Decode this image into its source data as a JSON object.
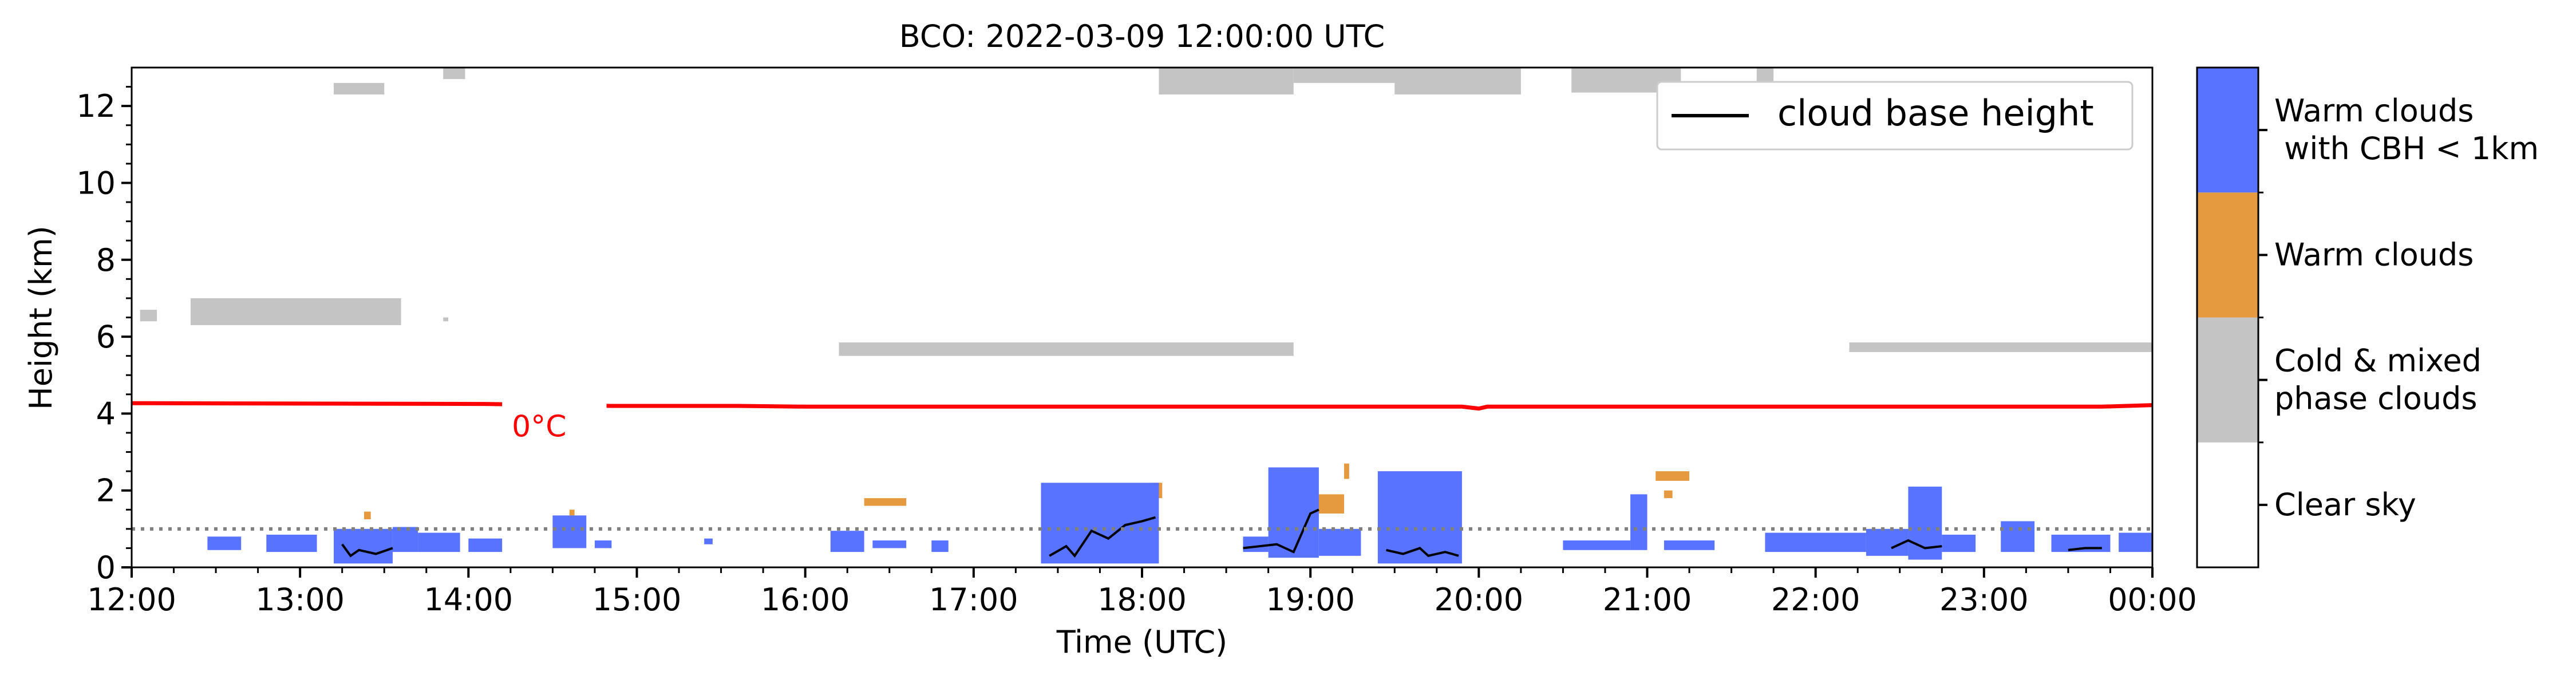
{
  "chart_data": {
    "type": "heatmap",
    "title": "BCO: 2022-03-09 12:00:00 UTC",
    "xlabel": "Time (UTC)",
    "ylabel": "Height (km)",
    "xlim": [
      12,
      24
    ],
    "ylim": [
      0,
      13
    ],
    "x_tick_labels": [
      {
        "t": 12,
        "label": "12:00"
      },
      {
        "t": 13,
        "label": "13:00"
      },
      {
        "t": 14,
        "label": "14:00"
      },
      {
        "t": 15,
        "label": "15:00"
      },
      {
        "t": 16,
        "label": "16:00"
      },
      {
        "t": 17,
        "label": "17:00"
      },
      {
        "t": 18,
        "label": "18:00"
      },
      {
        "t": 19,
        "label": "19:00"
      },
      {
        "t": 20,
        "label": "20:00"
      },
      {
        "t": 21,
        "label": "21:00"
      },
      {
        "t": 22,
        "label": "22:00"
      },
      {
        "t": 23,
        "label": "23:00"
      },
      {
        "t": 24,
        "label": "00:00"
      }
    ],
    "y_ticks": [
      0,
      2,
      4,
      6,
      8,
      10,
      12
    ],
    "legend": {
      "label": "cloud base height",
      "placement": "top-right"
    },
    "freezing_level": {
      "label": "0°C",
      "color": "#ff0000",
      "points": [
        [
          12.0,
          4.27
        ],
        [
          14.1,
          4.25
        ],
        [
          14.3,
          4.2
        ],
        [
          14.85,
          4.2
        ],
        [
          15.6,
          4.2
        ],
        [
          16.0,
          4.18
        ],
        [
          19.9,
          4.18
        ],
        [
          20.0,
          4.13
        ],
        [
          20.05,
          4.18
        ],
        [
          23.7,
          4.18
        ],
        [
          24.0,
          4.22
        ]
      ]
    },
    "reference_line_km": 1.0,
    "colorbar": {
      "categories": [
        {
          "label": "Clear sky",
          "color": "#ffffff"
        },
        {
          "label": "Cold & mixed\nphase clouds",
          "color": "#c4c4c4"
        },
        {
          "label": "Warm clouds",
          "color": "#e69a40"
        },
        {
          "label": "Warm clouds\n with CBH < 1km",
          "color": "#5773ff"
        }
      ]
    },
    "cloud_regions": [
      {
        "class": "cold_mixed",
        "t0": 12.05,
        "t1": 12.15,
        "h0": 6.4,
        "h1": 6.7
      },
      {
        "class": "cold_mixed",
        "t0": 12.35,
        "t1": 13.6,
        "h0": 6.3,
        "h1": 7.0
      },
      {
        "class": "cold_mixed",
        "t0": 13.85,
        "t1": 13.88,
        "h0": 6.4,
        "h1": 6.5
      },
      {
        "class": "cold_mixed",
        "t0": 13.2,
        "t1": 13.5,
        "h0": 12.3,
        "h1": 12.6
      },
      {
        "class": "cold_mixed",
        "t0": 13.85,
        "t1": 13.98,
        "h0": 12.7,
        "h1": 13.0
      },
      {
        "class": "cold_mixed",
        "t0": 16.2,
        "t1": 18.9,
        "h0": 5.5,
        "h1": 5.85
      },
      {
        "class": "cold_mixed",
        "t0": 22.2,
        "t1": 24.0,
        "h0": 5.6,
        "h1": 5.85
      },
      {
        "class": "cold_mixed",
        "t0": 18.1,
        "t1": 18.9,
        "h0": 12.3,
        "h1": 13.0
      },
      {
        "class": "cold_mixed",
        "t0": 18.9,
        "t1": 19.6,
        "h0": 12.6,
        "h1": 13.0
      },
      {
        "class": "cold_mixed",
        "t0": 19.5,
        "t1": 20.25,
        "h0": 12.3,
        "h1": 13.0
      },
      {
        "class": "cold_mixed",
        "t0": 20.55,
        "t1": 21.2,
        "h0": 12.35,
        "h1": 13.0
      },
      {
        "class": "cold_mixed",
        "t0": 21.65,
        "t1": 21.75,
        "h0": 12.5,
        "h1": 13.0
      },
      {
        "class": "warm",
        "t0": 16.35,
        "t1": 16.6,
        "h0": 1.6,
        "h1": 1.8
      },
      {
        "class": "warm",
        "t0": 17.4,
        "t1": 17.45,
        "h0": 1.7,
        "h1": 2.0
      },
      {
        "class": "warm",
        "t0": 18.05,
        "t1": 18.12,
        "h0": 1.8,
        "h1": 2.2
      },
      {
        "class": "warm",
        "t0": 19.03,
        "t1": 19.2,
        "h0": 1.4,
        "h1": 1.9
      },
      {
        "class": "warm",
        "t0": 19.2,
        "t1": 19.23,
        "h0": 2.3,
        "h1": 2.7
      },
      {
        "class": "warm",
        "t0": 21.05,
        "t1": 21.25,
        "h0": 2.25,
        "h1": 2.5
      },
      {
        "class": "warm",
        "t0": 21.1,
        "t1": 21.15,
        "h0": 1.8,
        "h1": 2.0
      },
      {
        "class": "warm",
        "t0": 13.38,
        "t1": 13.42,
        "h0": 1.25,
        "h1": 1.45
      },
      {
        "class": "warm",
        "t0": 14.6,
        "t1": 14.63,
        "h0": 1.35,
        "h1": 1.5
      },
      {
        "class": "warm_low_cbh",
        "t0": 12.45,
        "t1": 12.65,
        "h0": 0.45,
        "h1": 0.8
      },
      {
        "class": "warm_low_cbh",
        "t0": 12.8,
        "t1": 13.1,
        "h0": 0.4,
        "h1": 0.85
      },
      {
        "class": "warm_low_cbh",
        "t0": 13.2,
        "t1": 13.55,
        "h0": 0.1,
        "h1": 1.0
      },
      {
        "class": "warm_low_cbh",
        "t0": 13.55,
        "t1": 13.7,
        "h0": 0.4,
        "h1": 1.05
      },
      {
        "class": "warm_low_cbh",
        "t0": 13.7,
        "t1": 13.95,
        "h0": 0.4,
        "h1": 0.9
      },
      {
        "class": "warm_low_cbh",
        "t0": 14.0,
        "t1": 14.2,
        "h0": 0.4,
        "h1": 0.75
      },
      {
        "class": "warm_low_cbh",
        "t0": 14.5,
        "t1": 14.7,
        "h0": 0.5,
        "h1": 1.35
      },
      {
        "class": "warm_low_cbh",
        "t0": 14.75,
        "t1": 14.85,
        "h0": 0.5,
        "h1": 0.7
      },
      {
        "class": "warm_low_cbh",
        "t0": 15.4,
        "t1": 15.45,
        "h0": 0.6,
        "h1": 0.75
      },
      {
        "class": "warm_low_cbh",
        "t0": 16.15,
        "t1": 16.35,
        "h0": 0.4,
        "h1": 0.95
      },
      {
        "class": "warm_low_cbh",
        "t0": 16.4,
        "t1": 16.6,
        "h0": 0.5,
        "h1": 0.7
      },
      {
        "class": "warm_low_cbh",
        "t0": 16.75,
        "t1": 16.85,
        "h0": 0.4,
        "h1": 0.7
      },
      {
        "class": "warm_low_cbh",
        "t0": 17.4,
        "t1": 18.1,
        "h0": 0.1,
        "h1": 2.2
      },
      {
        "class": "warm_low_cbh",
        "t0": 18.6,
        "t1": 18.75,
        "h0": 0.4,
        "h1": 0.8
      },
      {
        "class": "warm_low_cbh",
        "t0": 18.75,
        "t1": 19.05,
        "h0": 0.25,
        "h1": 2.6
      },
      {
        "class": "warm_low_cbh",
        "t0": 19.05,
        "t1": 19.3,
        "h0": 0.3,
        "h1": 1.0
      },
      {
        "class": "warm_low_cbh",
        "t0": 19.4,
        "t1": 19.9,
        "h0": 0.1,
        "h1": 2.5
      },
      {
        "class": "warm_low_cbh",
        "t0": 20.5,
        "t1": 20.9,
        "h0": 0.45,
        "h1": 0.7
      },
      {
        "class": "warm_low_cbh",
        "t0": 20.9,
        "t1": 21.0,
        "h0": 0.45,
        "h1": 1.9
      },
      {
        "class": "warm_low_cbh",
        "t0": 21.1,
        "t1": 21.4,
        "h0": 0.45,
        "h1": 0.7
      },
      {
        "class": "warm_low_cbh",
        "t0": 21.7,
        "t1": 22.3,
        "h0": 0.4,
        "h1": 0.9
      },
      {
        "class": "warm_low_cbh",
        "t0": 22.3,
        "t1": 22.55,
        "h0": 0.3,
        "h1": 1.0
      },
      {
        "class": "warm_low_cbh",
        "t0": 22.55,
        "t1": 22.75,
        "h0": 0.2,
        "h1": 2.1
      },
      {
        "class": "warm_low_cbh",
        "t0": 22.75,
        "t1": 22.95,
        "h0": 0.4,
        "h1": 0.85
      },
      {
        "class": "warm_low_cbh",
        "t0": 23.1,
        "t1": 23.3,
        "h0": 0.4,
        "h1": 1.2
      },
      {
        "class": "warm_low_cbh",
        "t0": 23.4,
        "t1": 23.75,
        "h0": 0.4,
        "h1": 0.85
      },
      {
        "class": "warm_low_cbh",
        "t0": 23.8,
        "t1": 24.0,
        "h0": 0.4,
        "h1": 0.9
      }
    ],
    "cloud_base_height": [
      [
        [
          13.25,
          0.6
        ],
        [
          13.3,
          0.3
        ],
        [
          13.35,
          0.45
        ],
        [
          13.45,
          0.35
        ],
        [
          13.55,
          0.5
        ]
      ],
      [
        [
          17.45,
          0.3
        ],
        [
          17.55,
          0.55
        ],
        [
          17.6,
          0.3
        ],
        [
          17.7,
          0.95
        ],
        [
          17.8,
          0.75
        ],
        [
          17.9,
          1.1
        ],
        [
          18.0,
          1.2
        ],
        [
          18.08,
          1.3
        ]
      ],
      [
        [
          18.6,
          0.5
        ],
        [
          18.7,
          0.55
        ],
        [
          18.8,
          0.6
        ],
        [
          18.9,
          0.4
        ],
        [
          19.0,
          1.4
        ],
        [
          19.05,
          1.5
        ]
      ],
      [
        [
          19.45,
          0.45
        ],
        [
          19.55,
          0.35
        ],
        [
          19.65,
          0.5
        ],
        [
          19.7,
          0.3
        ],
        [
          19.8,
          0.4
        ],
        [
          19.88,
          0.3
        ]
      ],
      [
        [
          22.45,
          0.5
        ],
        [
          22.55,
          0.7
        ],
        [
          22.65,
          0.5
        ],
        [
          22.75,
          0.55
        ]
      ],
      [
        [
          23.5,
          0.45
        ],
        [
          23.6,
          0.5
        ],
        [
          23.7,
          0.5
        ]
      ]
    ]
  }
}
